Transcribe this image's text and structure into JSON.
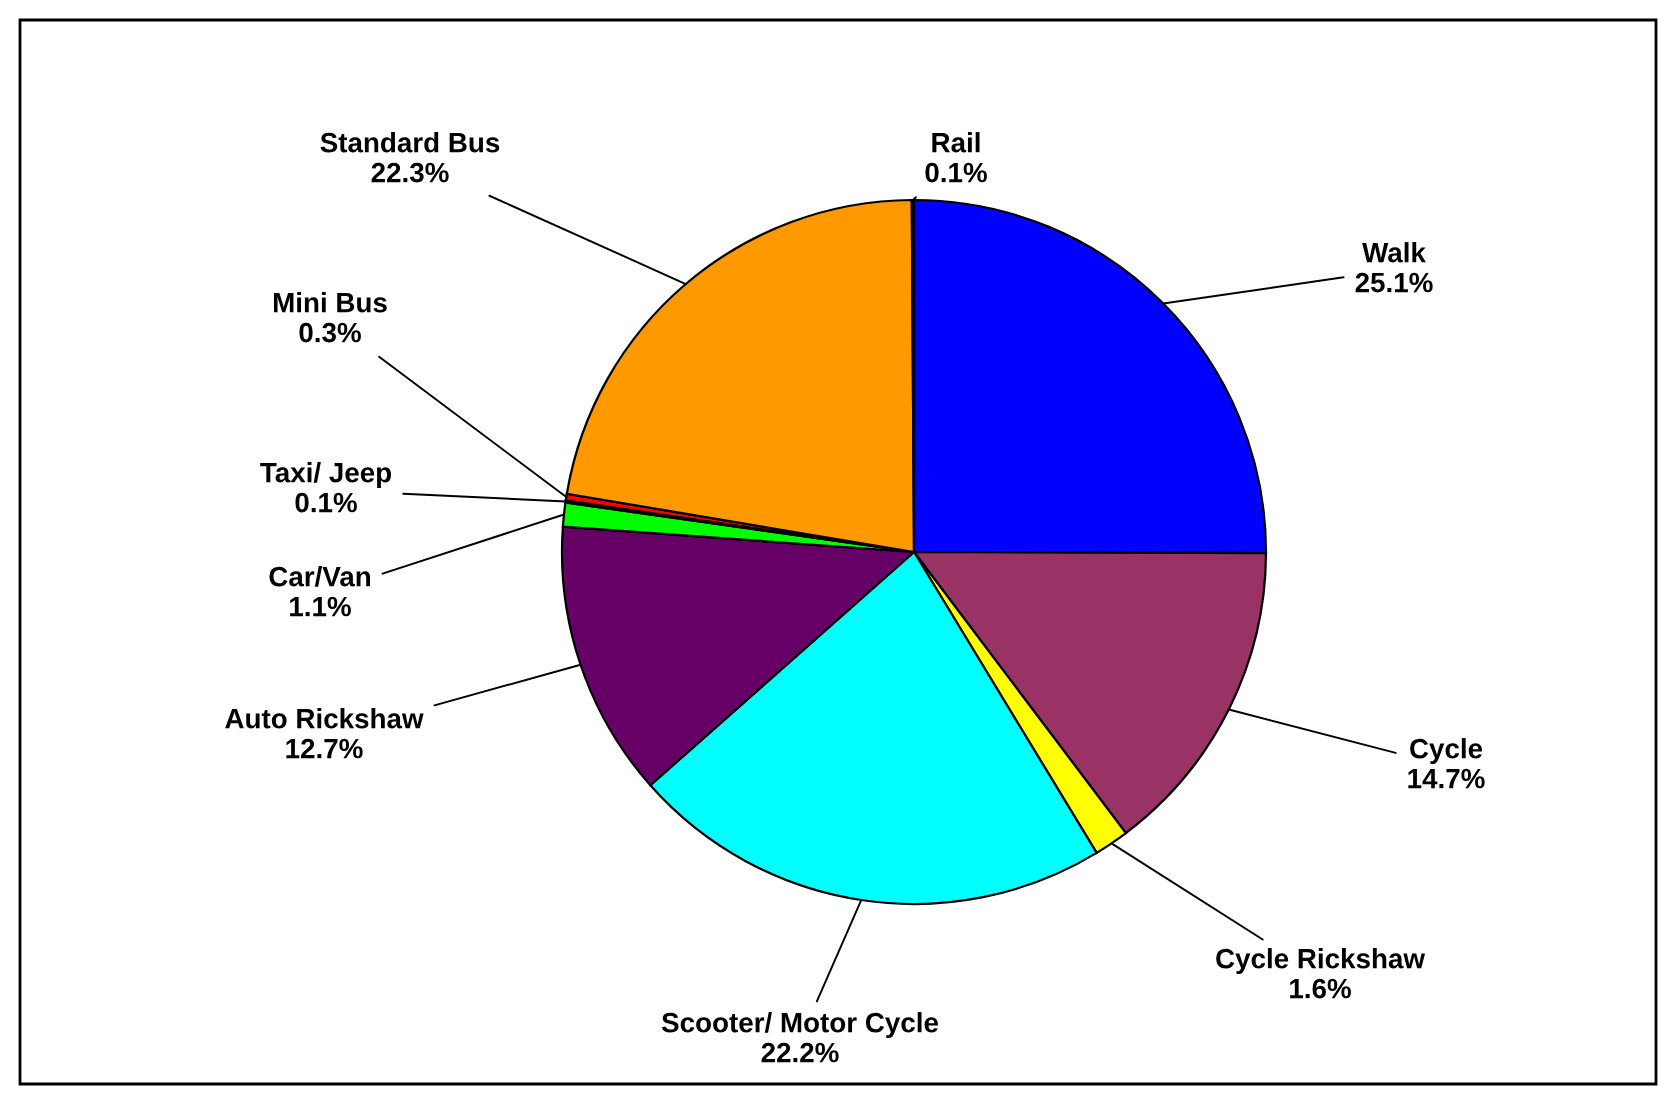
{
  "chart_data": {
    "type": "pie",
    "categories": [
      "Walk",
      "Cycle",
      "Cycle Rickshaw",
      "Scooter/ Motor Cycle",
      "Auto Rickshaw",
      "Car/Van",
      "Taxi/ Jeep",
      "Mini Bus",
      "Standard Bus",
      "Rail"
    ],
    "values": [
      25.1,
      14.7,
      1.6,
      22.2,
      12.7,
      1.1,
      0.1,
      0.3,
      22.3,
      0.1
    ],
    "value_labels": [
      "25.1%",
      "14.7%",
      "1.6%",
      "22.2%",
      "12.7%",
      "1.1%",
      "0.1%",
      "0.3%",
      "22.3%",
      "0.1%"
    ],
    "colors": [
      "#0000ff",
      "#993366",
      "#ffff00",
      "#00ffff",
      "#660066",
      "#00ff00",
      "#800000",
      "#ff0000",
      "#ff9900",
      "#000080"
    ],
    "legend": false
  }
}
